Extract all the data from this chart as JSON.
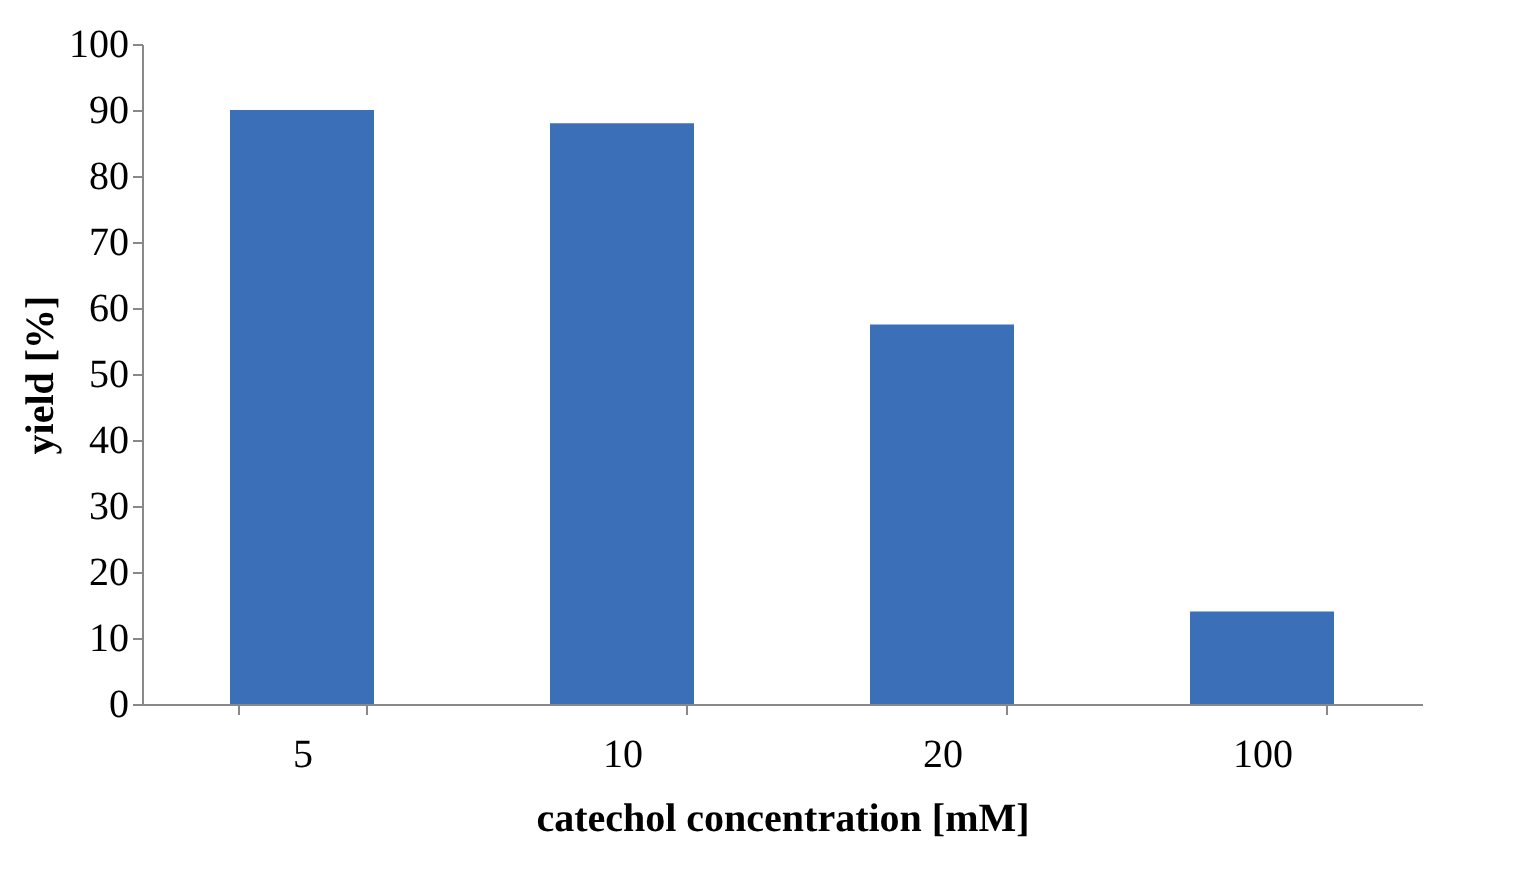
{
  "chart_data": {
    "type": "bar",
    "xlabel": "catechol concentration [mM]",
    "ylabel": "yield [%]",
    "categories": [
      "5",
      "10",
      "20",
      "100"
    ],
    "series": [
      {
        "color": "#3b70b8",
        "values": [
          90,
          88,
          57.5,
          14
        ]
      }
    ],
    "ylim": [
      0,
      100
    ],
    "yticks": [
      0,
      10,
      20,
      30,
      40,
      50,
      60,
      70,
      80,
      90,
      100
    ],
    "grid": false
  }
}
